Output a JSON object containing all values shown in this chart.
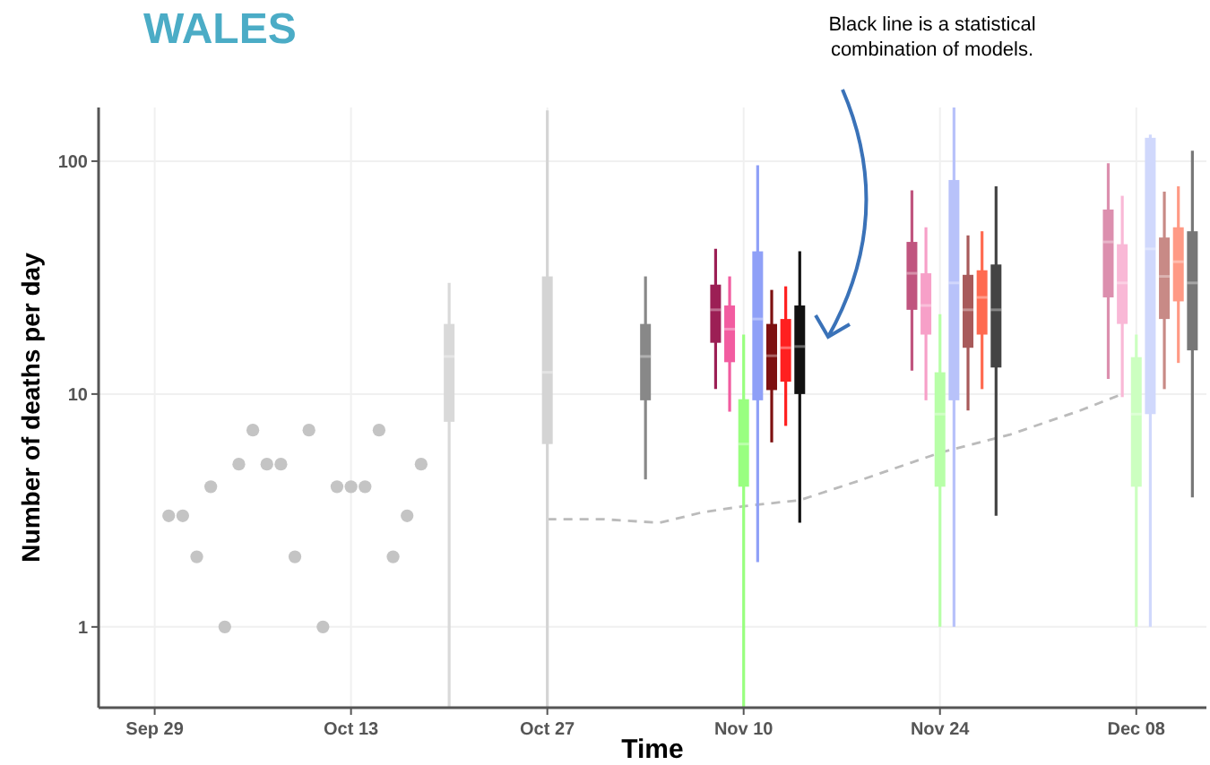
{
  "chart_data": {
    "type": "box",
    "title": "WALES",
    "xlabel": "Time",
    "ylabel": "Number of deaths per day",
    "annotations": [
      "Black line is a statistical combination of models."
    ],
    "log": true,
    "grid": true,
    "xlim": [
      "--09-25",
      "--12-13"
    ],
    "xticks": [
      {
        "value": "--09-29",
        "label": "Sep 29"
      },
      {
        "value": "--10-13",
        "label": "Oct 13"
      },
      {
        "value": "--10-27",
        "label": "Oct 27"
      },
      {
        "value": "--11-10",
        "label": "Nov 10"
      },
      {
        "value": "--11-24",
        "label": "Nov 24"
      },
      {
        "value": "--12-08",
        "label": "Dec 08"
      }
    ],
    "ylim": [
      0.45,
      170
    ],
    "yticks": [
      1,
      10,
      100
    ],
    "series": [
      {
        "type": "scatter",
        "marker": "circle",
        "color": "#c4c4c4",
        "x": [
          "--09-30",
          "--10-01",
          "--10-02",
          "--10-03",
          "--10-04",
          "--10-05",
          "--10-06",
          "--10-07",
          "--10-08",
          "--10-09",
          "--10-10",
          "--10-11",
          "--10-12",
          "--10-13",
          "--10-14",
          "--10-15",
          "--10-16",
          "--10-17",
          "--10-18"
        ],
        "values": [
          3,
          3,
          2,
          4,
          1,
          5,
          7,
          5,
          5,
          2,
          7,
          1,
          4,
          4,
          4,
          7,
          2,
          3,
          5
        ]
      },
      {
        "type": "line",
        "line_style": "dashed",
        "color": "#bbbbbb",
        "x": [
          "--10-27",
          "--10-31",
          "--11-04",
          "--11-07",
          "--11-10",
          "--11-14",
          "--11-18",
          "--11-24",
          "--11-29",
          "--12-04",
          "--12-07"
        ],
        "values": [
          2.9,
          2.9,
          2.8,
          3.1,
          3.3,
          3.5,
          4.2,
          5.6,
          6.7,
          8.5,
          10
        ]
      },
      {
        "type": "box",
        "colors": [
          "#d9d9d9",
          "#d4d4d4",
          "#888888"
        ],
        "x": [
          "--10-20",
          "--10-27",
          "--11-03"
        ],
        "boxes": [
          {
            "low": 0.45,
            "q1": 7.6,
            "median": 14.5,
            "q3": 20,
            "high": 30
          },
          {
            "low": 0.45,
            "q1": 6.1,
            "median": 12.4,
            "q3": 32,
            "high": 165
          },
          {
            "low": 4.3,
            "q1": 9.4,
            "median": 14.5,
            "q3": 20,
            "high": 32
          }
        ]
      },
      {
        "type": "box",
        "colors": [
          "#9c1f55",
          "#c0557f",
          "#dc8fae"
        ],
        "x": [
          "--11-08",
          "--11-22",
          "--12-06"
        ],
        "boxes": [
          {
            "low": 10.5,
            "q1": 16.6,
            "median": 23,
            "q3": 29.5,
            "high": 42
          },
          {
            "low": 12.6,
            "q1": 23,
            "median": 33,
            "q3": 45,
            "high": 75
          },
          {
            "low": 11.6,
            "q1": 26,
            "median": 45,
            "q3": 62,
            "high": 98
          }
        ]
      },
      {
        "type": "box",
        "colors": [
          "#f25ca0",
          "#f7a0c8",
          "#f9b8d6"
        ],
        "x": [
          "--11-09",
          "--11-23",
          "--12-07"
        ],
        "boxes": [
          {
            "low": 8.4,
            "q1": 13.7,
            "median": 19,
            "q3": 24,
            "high": 32
          },
          {
            "low": 9.4,
            "q1": 18,
            "median": 24,
            "q3": 33,
            "high": 52
          },
          {
            "low": 9.7,
            "q1": 20,
            "median": 30,
            "q3": 44,
            "high": 71
          }
        ]
      },
      {
        "type": "box",
        "colors": [
          "#99ff80",
          "#b8ffa8",
          "#ccffc0"
        ],
        "x": [
          "--11-10",
          "--11-24",
          "--12-08"
        ],
        "boxes": [
          {
            "low": 0.45,
            "q1": 4,
            "median": 6.1,
            "q3": 9.5,
            "high": 18
          },
          {
            "low": 1,
            "q1": 4,
            "median": 8.2,
            "q3": 12.4,
            "high": 22
          },
          {
            "low": 1,
            "q1": 4,
            "median": 8.2,
            "q3": 14.4,
            "high": 18
          }
        ]
      },
      {
        "type": "box",
        "colors": [
          "#8fa0f7",
          "#b8c2fa",
          "#d0d8fc"
        ],
        "x": [
          "--11-11",
          "--11-25",
          "--12-09"
        ],
        "boxes": [
          {
            "low": 1.9,
            "q1": 9.4,
            "median": 21,
            "q3": 41,
            "high": 96
          },
          {
            "low": 1,
            "q1": 9.4,
            "median": 30,
            "q3": 83,
            "high": 170
          },
          {
            "low": 1,
            "q1": 8.2,
            "median": 42,
            "q3": 126,
            "high": 130
          }
        ]
      },
      {
        "type": "box",
        "colors": [
          "#7d1010",
          "#a85a5a",
          "#c88a86"
        ],
        "x": [
          "--11-12",
          "--11-26",
          "--12-10"
        ],
        "boxes": [
          {
            "low": 6.2,
            "q1": 10.4,
            "median": 14.6,
            "q3": 20,
            "high": 28
          },
          {
            "low": 8.5,
            "q1": 15.8,
            "median": 23,
            "q3": 32.5,
            "high": 48
          },
          {
            "low": 10.5,
            "q1": 21,
            "median": 32,
            "q3": 47,
            "high": 74
          }
        ]
      },
      {
        "type": "box",
        "colors": [
          "#ff2020",
          "#ff6a50",
          "#ff9a85"
        ],
        "x": [
          "--11-13",
          "--11-27",
          "--12-11"
        ],
        "boxes": [
          {
            "low": 7.3,
            "q1": 11.3,
            "median": 15.8,
            "q3": 21,
            "high": 29
          },
          {
            "low": 10.5,
            "q1": 18,
            "median": 26,
            "q3": 34,
            "high": 50
          },
          {
            "low": 13.6,
            "q1": 25,
            "median": 37,
            "q3": 52,
            "high": 78
          }
        ]
      },
      {
        "type": "box",
        "colors": [
          "#111111",
          "#444444",
          "#777777"
        ],
        "x": [
          "--11-14",
          "--11-28",
          "--12-12"
        ],
        "boxes": [
          {
            "low": 2.8,
            "q1": 10,
            "median": 16,
            "q3": 24,
            "high": 41
          },
          {
            "low": 3,
            "q1": 13,
            "median": 23,
            "q3": 36,
            "high": 78
          },
          {
            "low": 3.6,
            "q1": 15.4,
            "median": 30,
            "q3": 50,
            "high": 111
          }
        ]
      }
    ]
  }
}
